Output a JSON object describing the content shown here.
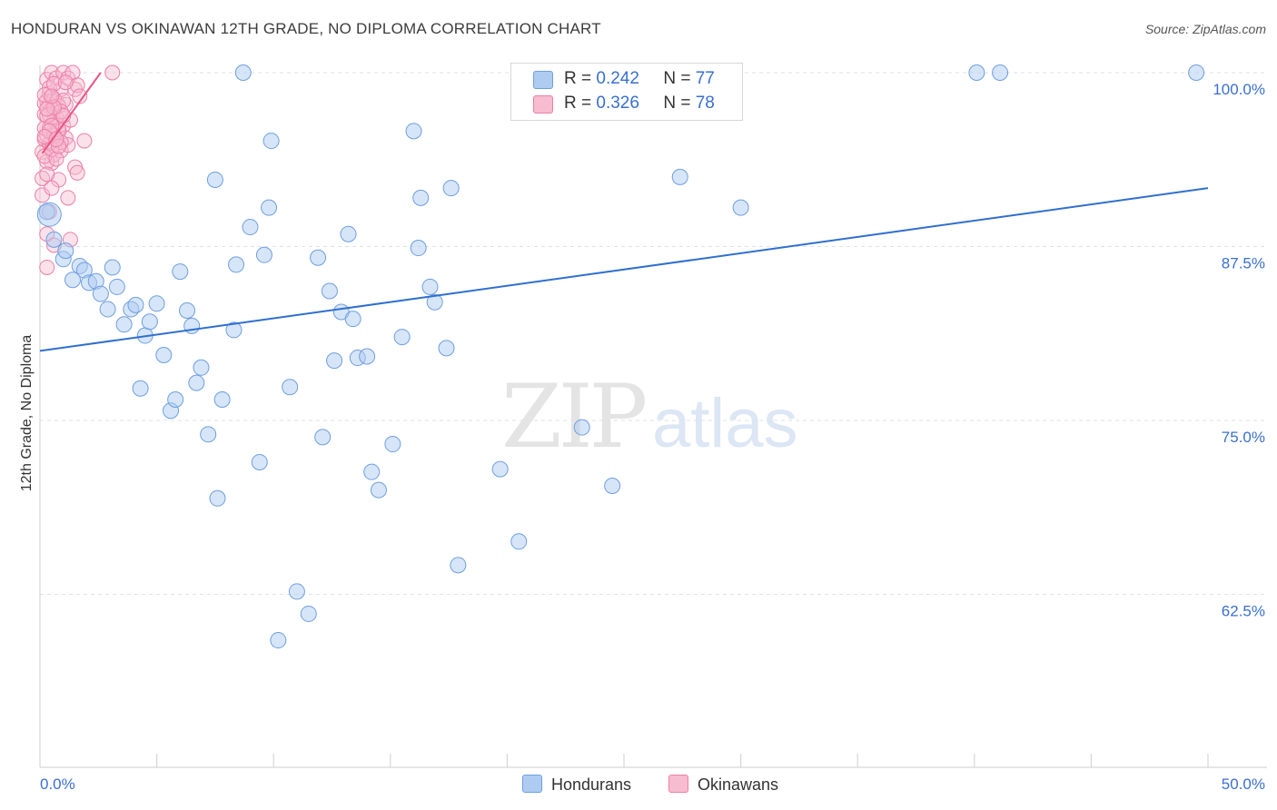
{
  "title": "HONDURAN VS OKINAWAN 12TH GRADE, NO DIPLOMA CORRELATION CHART",
  "source": "Source: ZipAtlas.com",
  "legend_top": {
    "rows": [
      {
        "r_label": "R = ",
        "r_value": "0.242",
        "n_label": "N = ",
        "n_value": "77"
      },
      {
        "r_label": "R = ",
        "r_value": "0.326",
        "n_label": "N = ",
        "n_value": "78"
      }
    ]
  },
  "legend_bottom": [
    "Hondurans",
    "Okinawans"
  ],
  "colors": {
    "blue_fill": "#aecbf1",
    "blue_stroke": "#6f9fe0",
    "blue_line": "#2f6fd0",
    "pink_fill": "#f7bcd0",
    "pink_stroke": "#ec7fa6",
    "pink_line": "#e85585",
    "axis_text": "#3a6fd0",
    "grid": "#dde2ea"
  },
  "chart_data": {
    "type": "scatter",
    "xlabel": "",
    "ylabel": "12th Grade, No Diploma",
    "xlim": [
      0,
      50
    ],
    "ylim": [
      50,
      100
    ],
    "x_tick_labels": [
      "0.0%",
      "50.0%"
    ],
    "y_tick_labels": [
      "100.0%",
      "87.5%",
      "75.0%",
      "62.5%"
    ],
    "y_tick_values": [
      100,
      87.5,
      75,
      62.5
    ],
    "grid": "horizontal dashed",
    "series": [
      {
        "name": "Hondurans",
        "trend": [
          [
            0,
            80.0
          ],
          [
            50,
            91.7
          ]
        ],
        "points": [
          [
            0.3,
            90.0
          ],
          [
            0.6,
            88.0
          ],
          [
            1.0,
            86.6
          ],
          [
            1.1,
            87.2
          ],
          [
            1.4,
            85.1
          ],
          [
            1.7,
            86.1
          ],
          [
            1.9,
            85.8
          ],
          [
            2.1,
            84.9
          ],
          [
            2.4,
            85.0
          ],
          [
            2.6,
            84.1
          ],
          [
            2.9,
            83.0
          ],
          [
            3.1,
            86.0
          ],
          [
            3.3,
            84.6
          ],
          [
            3.6,
            81.9
          ],
          [
            3.9,
            83.0
          ],
          [
            4.1,
            83.3
          ],
          [
            4.3,
            77.3
          ],
          [
            4.5,
            81.1
          ],
          [
            4.7,
            82.1
          ],
          [
            5.0,
            83.4
          ],
          [
            5.3,
            79.7
          ],
          [
            5.6,
            75.7
          ],
          [
            5.8,
            76.5
          ],
          [
            6.0,
            85.7
          ],
          [
            6.3,
            82.9
          ],
          [
            6.5,
            81.8
          ],
          [
            6.7,
            77.7
          ],
          [
            6.9,
            78.8
          ],
          [
            7.2,
            74.0
          ],
          [
            7.5,
            92.3
          ],
          [
            7.6,
            69.4
          ],
          [
            7.8,
            76.5
          ],
          [
            8.3,
            81.5
          ],
          [
            8.4,
            86.2
          ],
          [
            8.7,
            100.0
          ],
          [
            9.0,
            88.9
          ],
          [
            9.4,
            72.0
          ],
          [
            9.6,
            86.9
          ],
          [
            9.8,
            90.3
          ],
          [
            9.9,
            95.1
          ],
          [
            10.7,
            77.4
          ],
          [
            11.0,
            62.7
          ],
          [
            11.5,
            61.1
          ],
          [
            11.9,
            86.7
          ],
          [
            12.1,
            73.8
          ],
          [
            12.4,
            84.3
          ],
          [
            12.6,
            79.3
          ],
          [
            12.9,
            82.8
          ],
          [
            13.2,
            88.4
          ],
          [
            13.4,
            82.3
          ],
          [
            13.6,
            79.5
          ],
          [
            14.0,
            79.6
          ],
          [
            14.2,
            71.3
          ],
          [
            14.5,
            70.0
          ],
          [
            15.1,
            73.3
          ],
          [
            15.5,
            81.0
          ],
          [
            16.0,
            95.8
          ],
          [
            16.2,
            87.4
          ],
          [
            16.3,
            91.0
          ],
          [
            16.7,
            84.6
          ],
          [
            16.9,
            83.5
          ],
          [
            17.4,
            80.2
          ],
          [
            17.6,
            91.7
          ],
          [
            17.9,
            64.6
          ],
          [
            10.2,
            59.2
          ],
          [
            19.7,
            71.5
          ],
          [
            20.5,
            66.3
          ],
          [
            23.2,
            74.5
          ],
          [
            24.5,
            70.3
          ],
          [
            25.0,
            100.0
          ],
          [
            27.4,
            92.5
          ],
          [
            28.9,
            100.0
          ],
          [
            30.0,
            90.3
          ],
          [
            40.1,
            100.0
          ],
          [
            41.1,
            100.0
          ],
          [
            49.5,
            100.0
          ],
          [
            0.4,
            89.8
          ]
        ]
      },
      {
        "name": "Okinawans",
        "trend": [
          [
            0.1,
            94.2
          ],
          [
            2.6,
            100.0
          ]
        ],
        "points": [
          [
            0.1,
            91.2
          ],
          [
            0.1,
            92.4
          ],
          [
            0.1,
            94.3
          ],
          [
            0.2,
            95.2
          ],
          [
            0.2,
            97.0
          ],
          [
            0.3,
            98.0
          ],
          [
            0.3,
            99.5
          ],
          [
            0.3,
            88.4
          ],
          [
            0.3,
            86.0
          ],
          [
            0.4,
            90.0
          ],
          [
            0.4,
            96.1
          ],
          [
            0.4,
            97.7
          ],
          [
            0.4,
            98.5
          ],
          [
            0.5,
            100.0
          ],
          [
            0.5,
            93.5
          ],
          [
            0.5,
            95.0
          ],
          [
            0.6,
            96.6
          ],
          [
            0.6,
            97.3
          ],
          [
            0.6,
            94.1
          ],
          [
            0.6,
            87.6
          ],
          [
            0.7,
            99.6
          ],
          [
            0.7,
            96.3
          ],
          [
            0.7,
            97.9
          ],
          [
            0.8,
            92.3
          ],
          [
            0.8,
            95.7
          ],
          [
            0.9,
            98.8
          ],
          [
            0.9,
            94.4
          ],
          [
            1.0,
            96.2
          ],
          [
            1.0,
            100.0
          ],
          [
            1.1,
            95.3
          ],
          [
            1.1,
            97.7
          ],
          [
            1.2,
            99.6
          ],
          [
            1.2,
            94.8
          ],
          [
            1.3,
            88.0
          ],
          [
            1.3,
            96.6
          ],
          [
            1.4,
            100.0
          ],
          [
            1.5,
            98.8
          ],
          [
            1.5,
            93.2
          ],
          [
            1.6,
            99.1
          ],
          [
            1.7,
            98.3
          ],
          [
            1.2,
            91.0
          ],
          [
            1.6,
            92.8
          ],
          [
            0.3,
            93.6
          ],
          [
            0.2,
            97.8
          ],
          [
            0.6,
            98.1
          ],
          [
            0.8,
            95.9
          ],
          [
            0.4,
            94.9
          ],
          [
            0.5,
            91.7
          ],
          [
            1.9,
            95.1
          ],
          [
            3.1,
            100.0
          ],
          [
            0.9,
            95.0
          ],
          [
            0.5,
            97.4
          ],
          [
            0.7,
            96.8
          ],
          [
            0.3,
            95.5
          ],
          [
            0.2,
            96.0
          ],
          [
            0.4,
            98.9
          ],
          [
            0.6,
            99.2
          ],
          [
            0.8,
            97.6
          ],
          [
            1.0,
            98.0
          ],
          [
            0.2,
            94.0
          ],
          [
            0.3,
            92.7
          ],
          [
            0.5,
            94.5
          ],
          [
            0.7,
            93.8
          ],
          [
            0.9,
            97.2
          ],
          [
            1.1,
            99.3
          ],
          [
            0.4,
            97.0
          ],
          [
            0.6,
            95.5
          ],
          [
            0.2,
            98.4
          ],
          [
            0.3,
            96.9
          ],
          [
            0.5,
            96.2
          ],
          [
            0.8,
            94.7
          ],
          [
            1.0,
            96.9
          ],
          [
            0.4,
            95.8
          ],
          [
            0.6,
            97.5
          ],
          [
            0.2,
            95.4
          ],
          [
            0.3,
            97.4
          ],
          [
            0.5,
            98.3
          ],
          [
            0.7,
            95.2
          ]
        ]
      }
    ]
  }
}
